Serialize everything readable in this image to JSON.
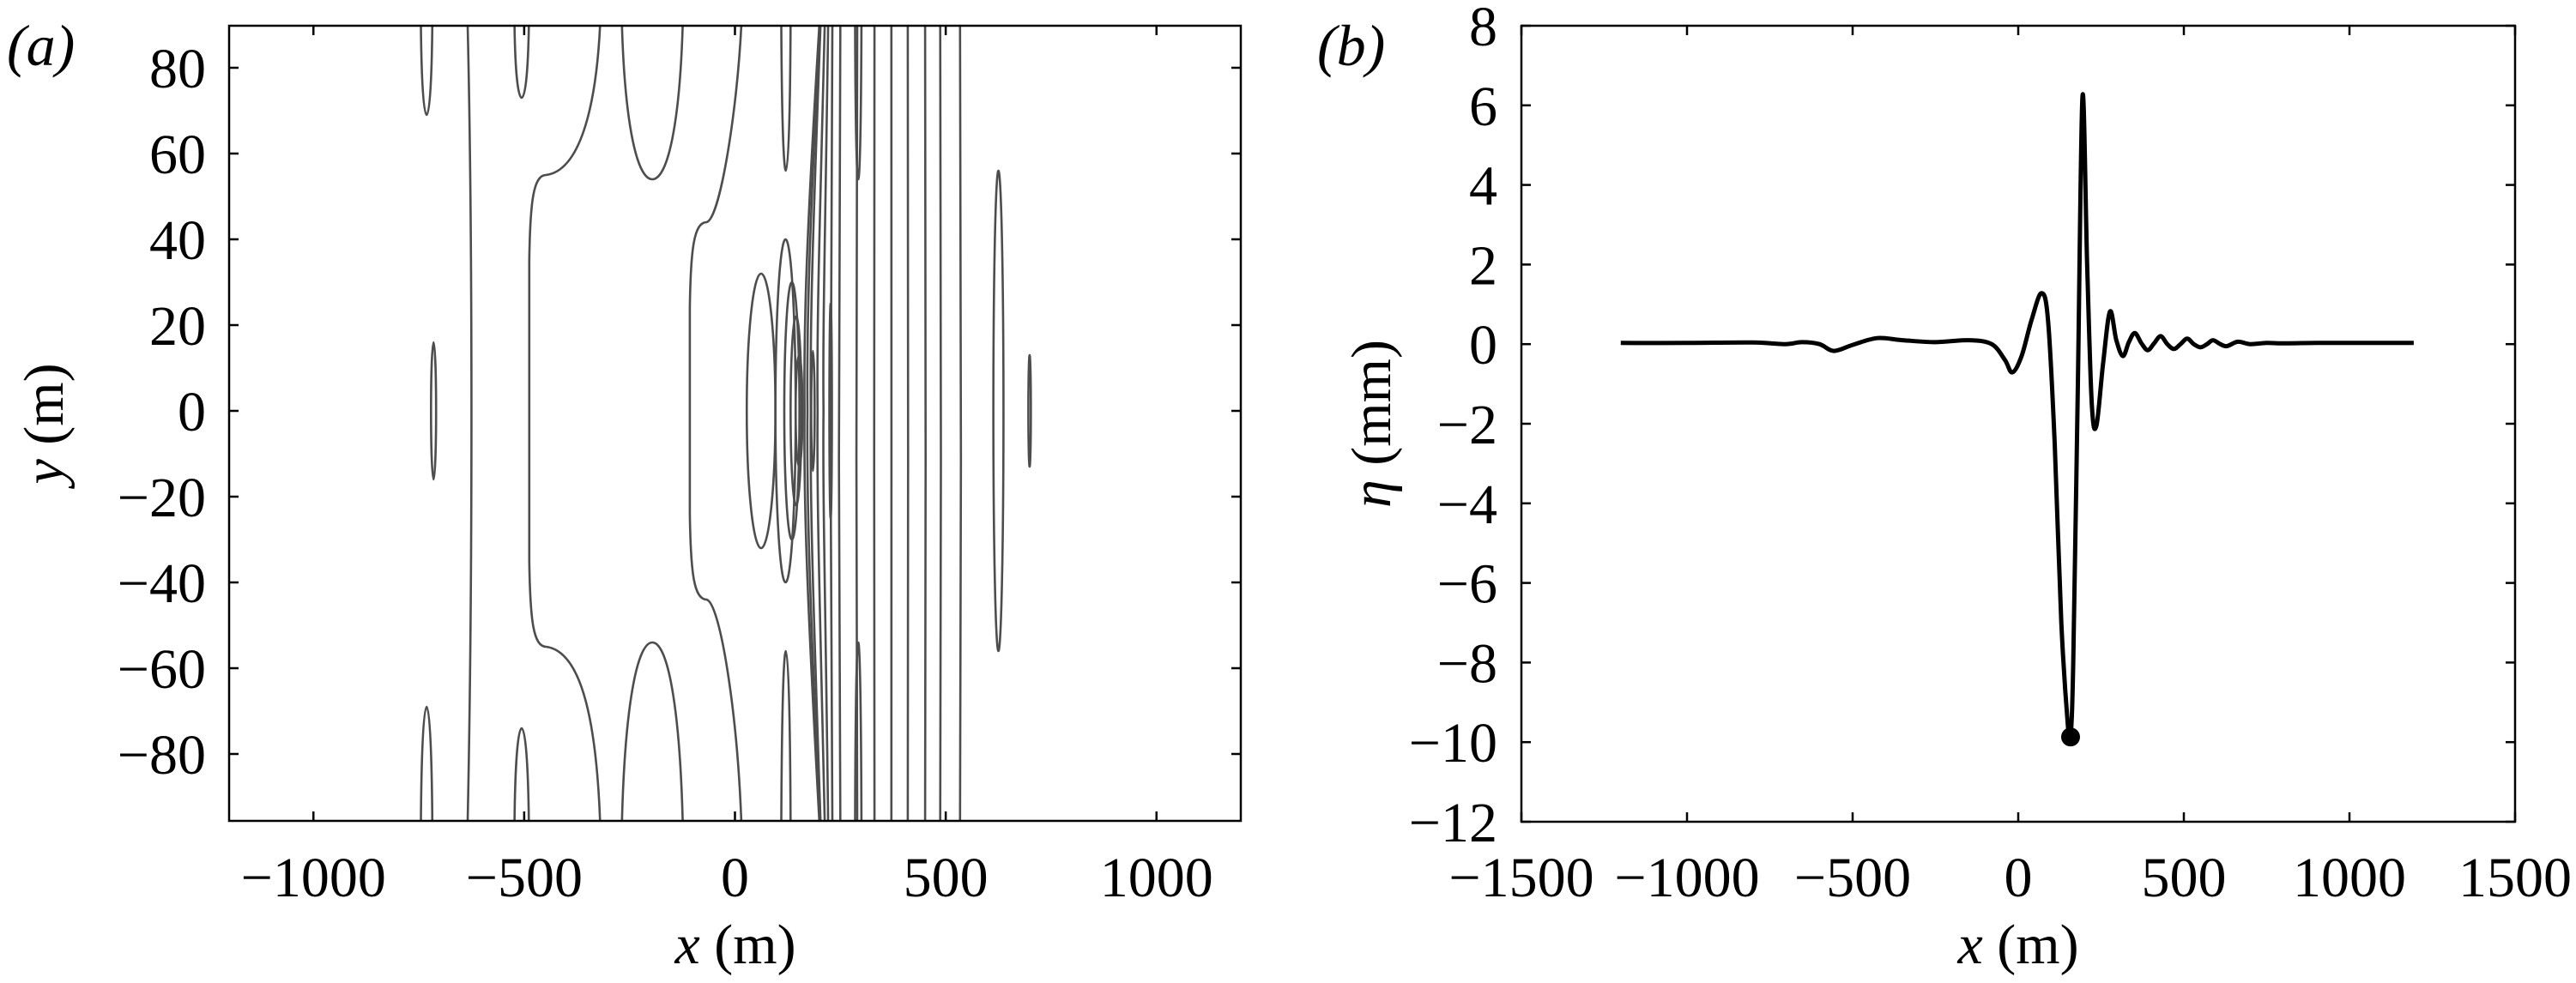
{
  "figure": {
    "panel_a_label": "(a)",
    "panel_b_label": "(b)"
  },
  "chart_data": [
    {
      "type": "contour",
      "panel": "(a)",
      "title": "",
      "xlabel": "x (m)",
      "ylabel": "y (m)",
      "xlim": [
        -1200,
        1200
      ],
      "ylim": [
        -95.6,
        89.8
      ],
      "xticks": [
        -1000,
        -500,
        0,
        500,
        1000
      ],
      "xtick_labels": [
        "−1000",
        "−500",
        "0",
        "500",
        "1000"
      ],
      "yticks": [
        80,
        60,
        40,
        20,
        0,
        -20,
        -40,
        -60,
        -80
      ],
      "ytick_labels": [
        "80",
        "60",
        "40",
        "20",
        "0",
        "−20",
        "−40",
        "−60",
        "−80"
      ],
      "grid": false,
      "line_color": "#4d4d4d",
      "description": "Contour lines of a ship-wave-like surface elevation field; lines run mostly vertically, concentrate near x≈150–200 m at y≈0 with nested closed ellipses, and spread to the right up to x≈570 m.",
      "features": {
        "vertical_lines_x": [
          -630,
          235,
          254,
          294,
          335,
          375,
          414,
          455,
          491,
          538
        ],
        "closed_ellipses": [
          {
            "cx": -715,
            "cy": 0,
            "rx": 6,
            "ry": 16
          },
          {
            "cx": 62,
            "cy": 0,
            "rx": 34,
            "ry": 32
          },
          {
            "cx": 120,
            "cy": 0,
            "rx": 24,
            "ry": 40
          },
          {
            "cx": 135,
            "cy": 0,
            "rx": 18,
            "ry": 30
          },
          {
            "cx": 145,
            "cy": 0,
            "rx": 13,
            "ry": 22
          },
          {
            "cx": 152,
            "cy": 0,
            "rx": 8,
            "ry": 13
          },
          {
            "cx": 185,
            "cy": 0,
            "rx": 4,
            "ry": 14
          },
          {
            "cx": 227,
            "cy": 0,
            "rx": 3,
            "ry": 25
          },
          {
            "cx": 625,
            "cy": 0,
            "rx": 12,
            "ry": 56
          },
          {
            "cx": 699,
            "cy": 0,
            "rx": 3,
            "ry": 13
          }
        ],
        "edge_lobes": [
          {
            "x1": -745,
            "x2": -718,
            "tip_y": 69,
            "edge": "top"
          },
          {
            "x1": -523,
            "x2": -489,
            "tip_y": 73,
            "edge": "top"
          },
          {
            "x1": -268,
            "x2": -124,
            "tip_y": 54,
            "edge": "top"
          },
          {
            "x1": 110,
            "x2": 132,
            "tip_y": 56,
            "edge": "top"
          },
          {
            "x1": 285,
            "x2": 300,
            "tip_y": 54,
            "edge": "top"
          },
          {
            "x1": -745,
            "x2": -718,
            "tip_y": -69,
            "edge": "bottom"
          },
          {
            "x1": -523,
            "x2": -489,
            "tip_y": -74,
            "edge": "bottom"
          },
          {
            "x1": -268,
            "x2": -124,
            "tip_y": -54,
            "edge": "bottom"
          },
          {
            "x1": 110,
            "x2": 132,
            "tip_y": -56,
            "edge": "bottom"
          },
          {
            "x1": 285,
            "x2": 300,
            "tip_y": -54,
            "edge": "bottom"
          }
        ],
        "step_curves": [
          {
            "x_edge": -320,
            "x_mid": -488,
            "shoulder_y": 55
          },
          {
            "x_edge": 15,
            "x_mid": -107,
            "shoulder_y": 44
          }
        ]
      }
    },
    {
      "type": "line",
      "panel": "(b)",
      "title": "",
      "xlabel": "x (m)",
      "ylabel": "η (mm)",
      "xlim": [
        -1500,
        1500
      ],
      "ylim": [
        -12,
        8
      ],
      "xticks": [
        -1500,
        -1000,
        -500,
        0,
        500,
        1000,
        1500
      ],
      "xtick_labels": [
        "−1500",
        "−1000",
        "−500",
        "0",
        "500",
        "1000",
        "1500"
      ],
      "yticks": [
        8,
        6,
        4,
        2,
        0,
        -2,
        -4,
        -6,
        -8,
        -10,
        -12
      ],
      "ytick_labels": [
        "8",
        "6",
        "4",
        "2",
        "0",
        "−2",
        "−4",
        "−6",
        "−8",
        "−10",
        "−12"
      ],
      "grid": false,
      "line_color": "#000000",
      "series": [
        {
          "name": "eta",
          "x": [
            -1200,
            -1000,
            -800,
            -705,
            -653,
            -600,
            -557,
            -500,
            -427,
            -350,
            -250,
            -150,
            -80,
            -40,
            -18,
            10,
            40,
            70,
            90,
            110,
            130,
            150,
            158,
            166,
            180,
            194,
            208,
            222,
            236,
            256,
            277,
            296,
            316,
            334,
            352,
            372,
            391,
            410,
            430,
            450,
            470,
            490,
            510,
            530,
            550,
            570,
            588,
            610,
            630,
            663,
            700,
            750,
            800,
            900,
            1000,
            1100,
            1194
          ],
          "y": [
            0.03,
            0.03,
            0.04,
            0.0,
            0.05,
            0.0,
            -0.17,
            -0.02,
            0.15,
            0.1,
            0.05,
            0.1,
            0.0,
            -0.4,
            -0.71,
            -0.3,
            0.6,
            1.28,
            0.6,
            -2.5,
            -7.0,
            -9.6,
            -9.87,
            -8.0,
            -1.0,
            6.23,
            2.0,
            -1.5,
            -2.05,
            -0.5,
            0.82,
            0.1,
            -0.3,
            0.05,
            0.28,
            0.02,
            -0.15,
            0.02,
            0.2,
            0.0,
            -0.12,
            0.0,
            0.14,
            0.0,
            -0.08,
            0.0,
            0.1,
            0.0,
            -0.05,
            0.06,
            0.0,
            0.03,
            0.02,
            0.03,
            0.03,
            0.03,
            0.03
          ]
        }
      ],
      "markers": [
        {
          "x": 158,
          "y": -9.87,
          "shape": "filled-circle"
        }
      ]
    }
  ]
}
